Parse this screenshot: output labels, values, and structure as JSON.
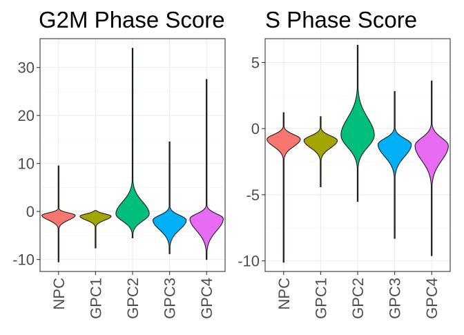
{
  "chart_data": [
    {
      "type": "violin",
      "title": "G2M Phase Score",
      "xlabel": "",
      "ylabel": "",
      "categories": [
        "NPC",
        "GPC1",
        "GPC2",
        "GPC3",
        "GPC4"
      ],
      "colors": [
        "#F8766D",
        "#A3A500",
        "#00BF7D",
        "#00B0F6",
        "#E76BF3"
      ],
      "ylim": [
        -12.5,
        36
      ],
      "y_ticks": [
        -10,
        0,
        10,
        20,
        30
      ],
      "y_tick_labels": [
        "-10",
        "0",
        "10",
        "20",
        "30"
      ],
      "grid": true,
      "series": [
        {
          "category": "NPC",
          "min": -10.5,
          "max": 9.5,
          "mode": -0.8,
          "upper_spread": 0.5,
          "lower_spread": 1.0,
          "max_half_width": 0.45
        },
        {
          "category": "GPC1",
          "min": -7.6,
          "max": 0.2,
          "mode": -1.0,
          "upper_spread": 0.5,
          "lower_spread": 0.8,
          "max_half_width": 0.42
        },
        {
          "category": "GPC2",
          "min": -5.5,
          "max": 34.0,
          "mode": -0.5,
          "upper_spread": 2.5,
          "lower_spread": 1.5,
          "max_half_width": 0.45
        },
        {
          "category": "GPC3",
          "min": -8.8,
          "max": 14.5,
          "mode": -1.8,
          "upper_spread": 1.0,
          "lower_spread": 2.0,
          "max_half_width": 0.45
        },
        {
          "category": "GPC4",
          "min": -10.0,
          "max": 27.5,
          "mode": -1.5,
          "upper_spread": 1.0,
          "lower_spread": 2.5,
          "max_half_width": 0.45
        }
      ]
    },
    {
      "type": "violin",
      "title": "S Phase Score",
      "xlabel": "",
      "ylabel": "",
      "categories": [
        "NPC",
        "GPC1",
        "GPC2",
        "GPC3",
        "GPC4"
      ],
      "colors": [
        "#F8766D",
        "#A3A500",
        "#00BF7D",
        "#00B0F6",
        "#E76BF3"
      ],
      "ylim": [
        -10.8,
        6.8
      ],
      "y_ticks": [
        -10,
        -5,
        0,
        5
      ],
      "y_tick_labels": [
        "-10",
        "-5",
        "0",
        "5"
      ],
      "grid": true,
      "series": [
        {
          "category": "NPC",
          "min": -10.1,
          "max": 1.2,
          "mode": -0.8,
          "upper_spread": 0.35,
          "lower_spread": 0.55,
          "max_half_width": 0.45
        },
        {
          "category": "GPC1",
          "min": -4.4,
          "max": 0.9,
          "mode": -0.9,
          "upper_spread": 0.35,
          "lower_spread": 0.55,
          "max_half_width": 0.45
        },
        {
          "category": "GPC2",
          "min": -5.5,
          "max": 6.3,
          "mode": -0.5,
          "upper_spread": 1.3,
          "lower_spread": 0.9,
          "max_half_width": 0.45
        },
        {
          "category": "GPC3",
          "min": -8.3,
          "max": 2.8,
          "mode": -1.2,
          "upper_spread": 0.45,
          "lower_spread": 0.9,
          "max_half_width": 0.45
        },
        {
          "category": "GPC4",
          "min": -9.6,
          "max": 3.6,
          "mode": -1.3,
          "upper_spread": 0.6,
          "lower_spread": 1.1,
          "max_half_width": 0.45
        }
      ]
    }
  ]
}
